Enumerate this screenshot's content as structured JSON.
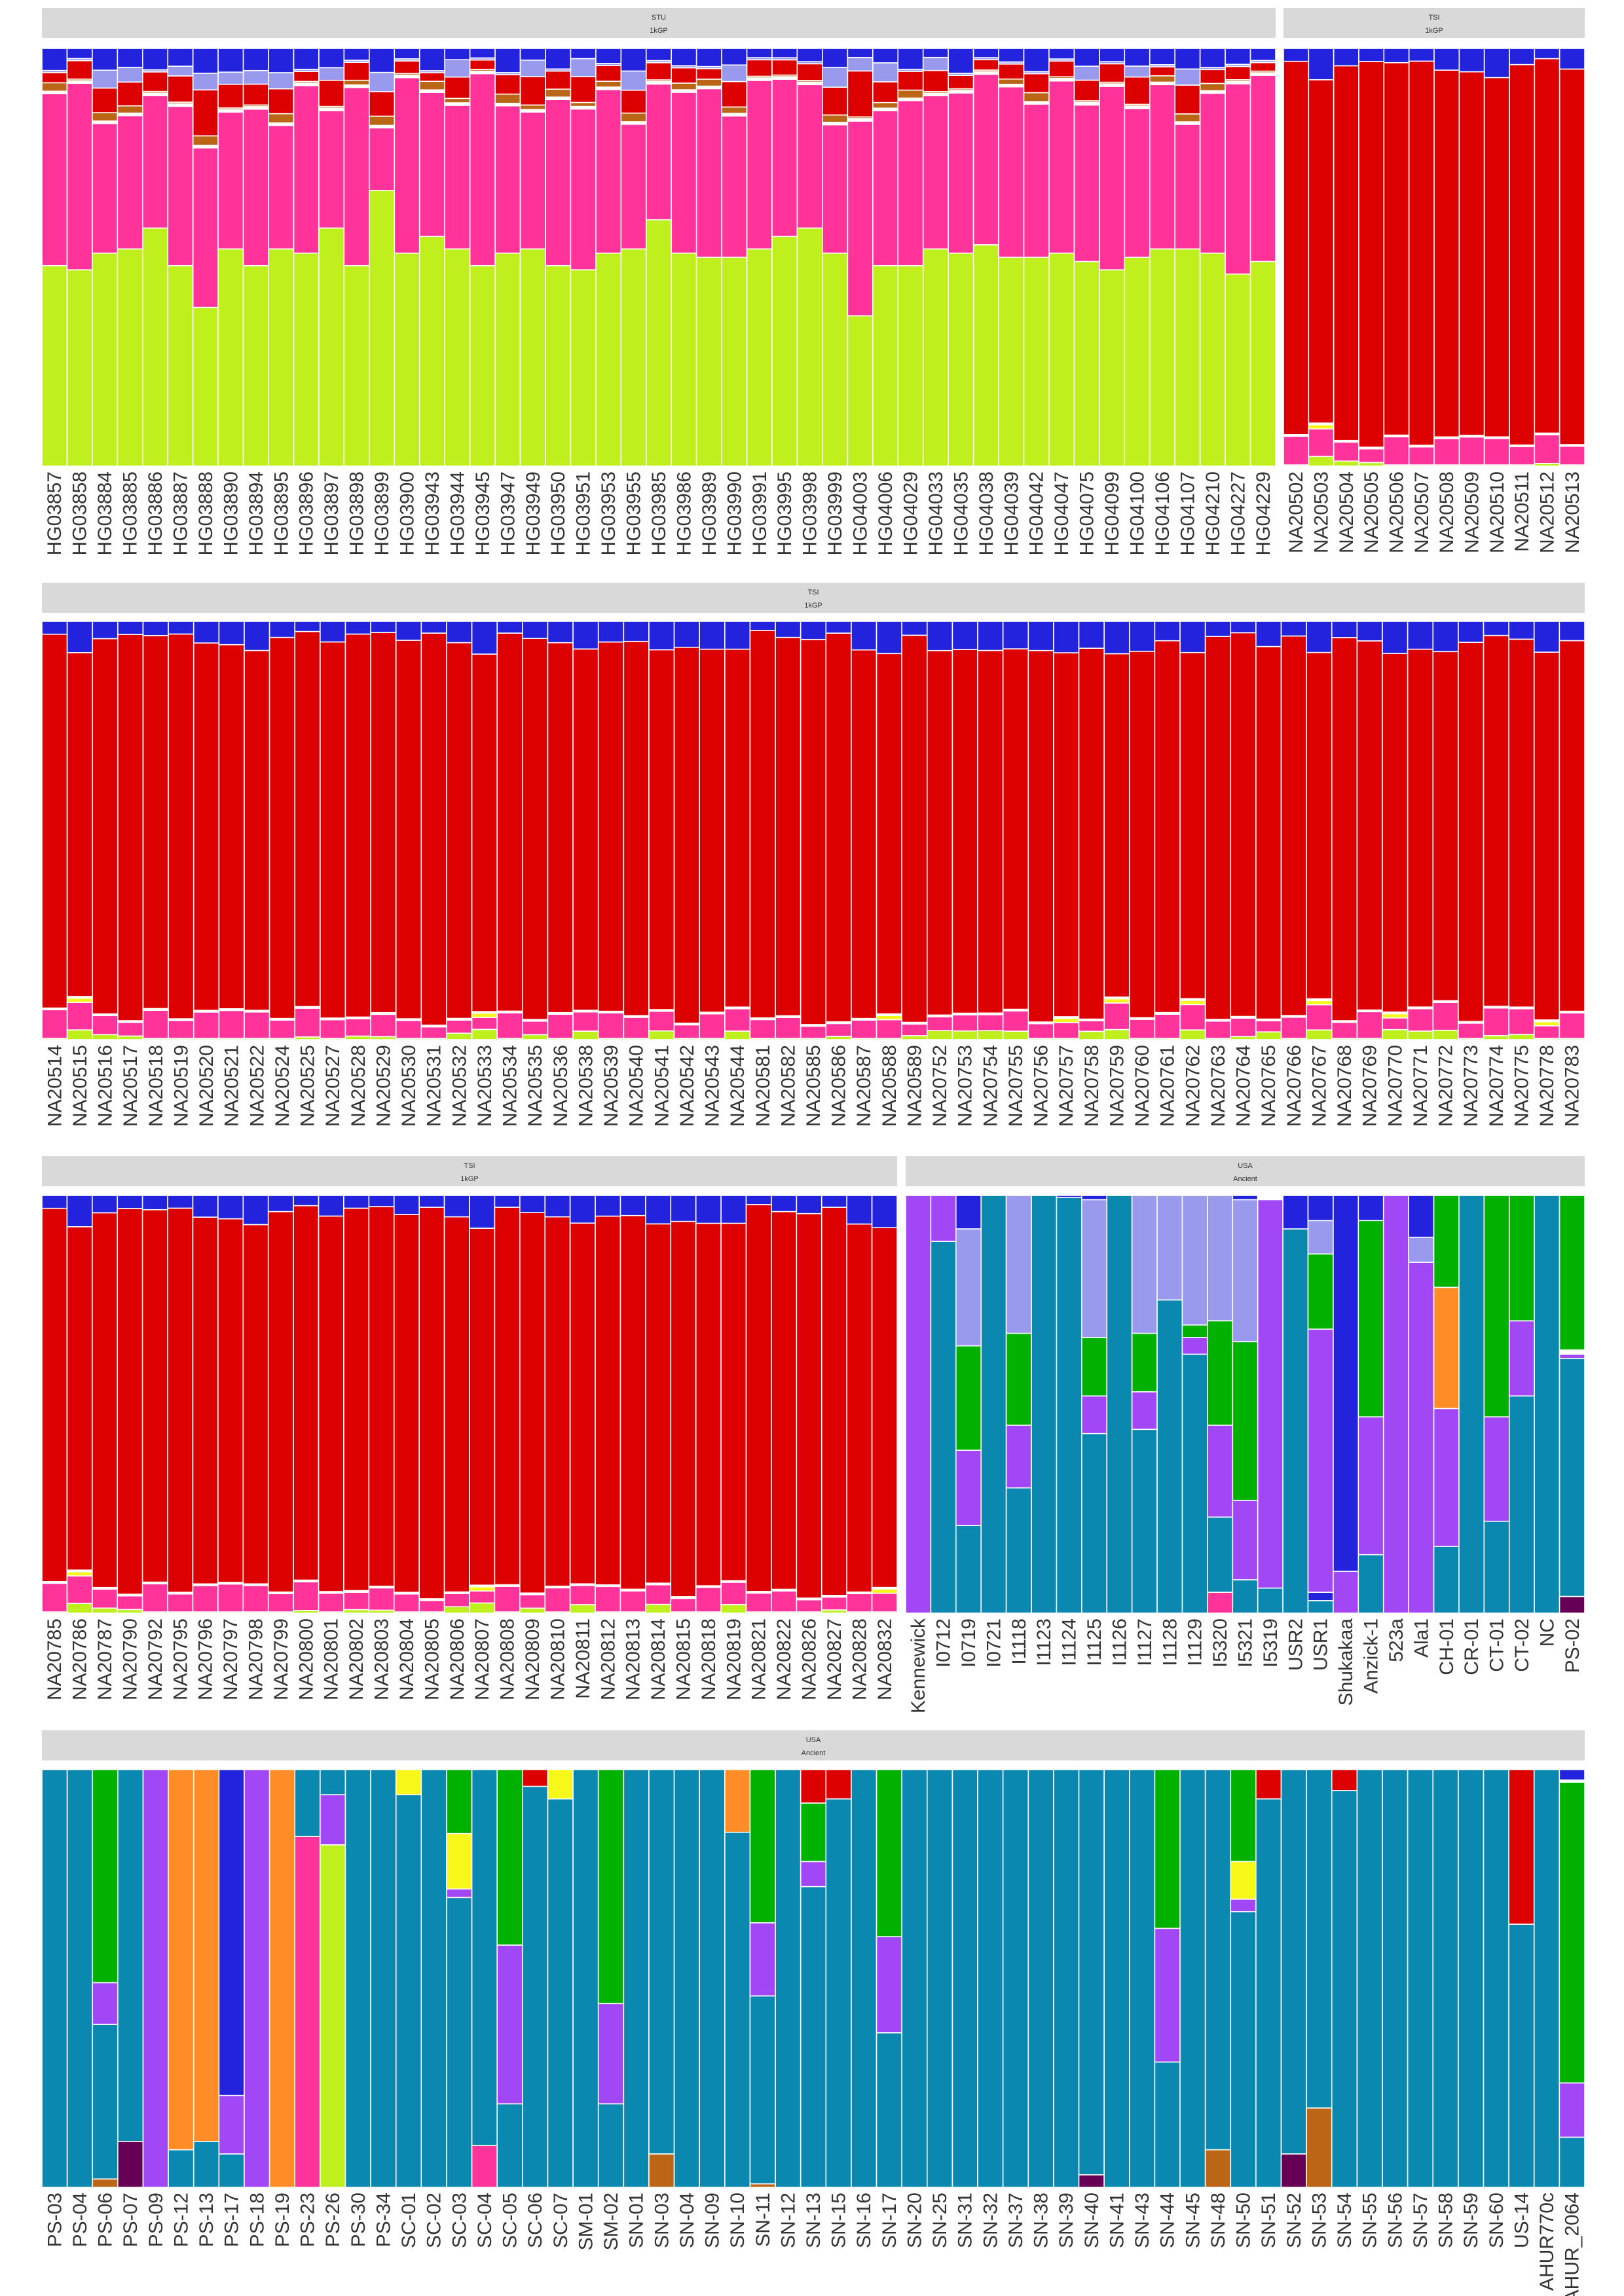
{
  "chart_data": [
    {
      "type": "bar",
      "stacked": true,
      "facets": [
        {
          "group": "STU",
          "source": "1kGP",
          "samples": [
            "HG03857",
            "HG03858",
            "HG03884",
            "HG03885",
            "HG03886",
            "HG03887",
            "HG03888",
            "HG03890",
            "HG03894",
            "HG03895",
            "HG03896",
            "HG03897",
            "HG03898",
            "HG03899",
            "HG03900",
            "HG03943",
            "HG03944",
            "HG03945",
            "HG03947",
            "HG03949",
            "HG03950",
            "HG03951",
            "HG03953",
            "HG03955",
            "HG03985",
            "HG03986",
            "HG03989",
            "HG03990",
            "HG03991",
            "HG03995",
            "HG03998",
            "HG03999",
            "HG04003",
            "HG04006",
            "HG04029",
            "HG04033",
            "HG04035",
            "HG04038",
            "HG04039",
            "HG04042",
            "HG04047",
            "HG04075",
            "HG04099",
            "HG04100",
            "HG04106",
            "HG04107",
            "HG04210",
            "HG04227",
            "HG04229"
          ],
          "lime": [
            0.48,
            0.47,
            0.51,
            0.52,
            0.57,
            0.48,
            0.38,
            0.52,
            0.48,
            0.52,
            0.51,
            0.57,
            0.48,
            0.66,
            0.51,
            0.55,
            0.52,
            0.48,
            0.51,
            0.52,
            0.48,
            0.47,
            0.51,
            0.52,
            0.59,
            0.51,
            0.5,
            0.5,
            0.52,
            0.55,
            0.57,
            0.51,
            0.36,
            0.48,
            0.48,
            0.52,
            0.51,
            0.53,
            0.5,
            0.5,
            0.51,
            0.49,
            0.47,
            0.5,
            0.52,
            0.52,
            0.51,
            0.46,
            0.49
          ]
        },
        {
          "group": "TSI",
          "source": "1kGP",
          "samples": [
            "NA20502",
            "NA20503",
            "NA20504",
            "NA20505",
            "NA20506",
            "NA20507",
            "NA20508",
            "NA20509",
            "NA20510",
            "NA20511",
            "NA20512",
            "NA20513"
          ],
          "lime": []
        }
      ]
    },
    {
      "type": "bar",
      "stacked": true,
      "facets": [
        {
          "group": "TSI",
          "source": "1kGP",
          "samples": [
            "NA20514",
            "NA20515",
            "NA20516",
            "NA20517",
            "NA20518",
            "NA20519",
            "NA20520",
            "NA20521",
            "NA20522",
            "NA20524",
            "NA20525",
            "NA20527",
            "NA20528",
            "NA20529",
            "NA20530",
            "NA20531",
            "NA20532",
            "NA20533",
            "NA20534",
            "NA20535",
            "NA20536",
            "NA20538",
            "NA20539",
            "NA20540",
            "NA20541",
            "NA20542",
            "NA20543",
            "NA20544",
            "NA20581",
            "NA20582",
            "NA20585",
            "NA20586",
            "NA20587",
            "NA20588",
            "NA20589",
            "NA20752",
            "NA20753",
            "NA20754",
            "NA20755",
            "NA20756",
            "NA20757",
            "NA20758",
            "NA20759",
            "NA20760",
            "NA20761",
            "NA20762",
            "NA20763",
            "NA20764",
            "NA20765",
            "NA20766",
            "NA20767",
            "NA20768",
            "NA20769",
            "NA20770",
            "NA20771",
            "NA20772",
            "NA20773",
            "NA20774",
            "NA20775",
            "NA20778",
            "NA20783"
          ],
          "lime": []
        }
      ]
    },
    {
      "type": "bar",
      "stacked": true,
      "facets": [
        {
          "group": "TSI",
          "source": "1kGP",
          "samples": [
            "NA20785",
            "NA20786",
            "NA20787",
            "NA20790",
            "NA20792",
            "NA20795",
            "NA20796",
            "NA20797",
            "NA20798",
            "NA20799",
            "NA20800",
            "NA20801",
            "NA20802",
            "NA20803",
            "NA20804",
            "NA20805",
            "NA20806",
            "NA20807",
            "NA20808",
            "NA20809",
            "NA20810",
            "NA20811",
            "NA20812",
            "NA20813",
            "NA20814",
            "NA20815",
            "NA20818",
            "NA20819",
            "NA20821",
            "NA20822",
            "NA20826",
            "NA20827",
            "NA20828",
            "NA20832"
          ],
          "lime": []
        },
        {
          "group": "USA",
          "source": "Ancient",
          "samples": [
            "Kennewick",
            "I0712",
            "I0719",
            "I0721",
            "I1118",
            "I1123",
            "I1124",
            "I1125",
            "I1126",
            "I1127",
            "I1128",
            "I1129",
            "I5320",
            "I5321",
            "I5319",
            "USR2",
            "USR1",
            "Shukakaa",
            "Anzick-1",
            "523a",
            "Ala1",
            "CH-01",
            "CR-01",
            "CT-01",
            "CT-02",
            "NC",
            "PS-02"
          ],
          "lime": []
        }
      ]
    },
    {
      "type": "bar",
      "stacked": true,
      "facets": [
        {
          "group": "USA",
          "source": "Ancient",
          "samples": [
            "PS-03",
            "PS-04",
            "PS-06",
            "PS-07",
            "PS-09",
            "PS-12",
            "PS-13",
            "PS-17",
            "PS-18",
            "PS-19",
            "PS-23",
            "PS-26",
            "PS-30",
            "PS-34",
            "SC-01",
            "SC-02",
            "SC-03",
            "SC-04",
            "SC-05",
            "SC-06",
            "SC-07",
            "SM-01",
            "SM-02",
            "SN-01",
            "SN-03",
            "SN-04",
            "SN-09",
            "SN-10",
            "SN-11",
            "SN-12",
            "SN-13",
            "SN-15",
            "SN-16",
            "SN-17",
            "SN-20",
            "SN-25",
            "SN-31",
            "SN-32",
            "SN-37",
            "SN-38",
            "SN-39",
            "SN-40",
            "SN-41",
            "SN-43",
            "SN-44",
            "SN-45",
            "SN-48",
            "SN-50",
            "SN-51",
            "SN-52",
            "SN-53",
            "SN-54",
            "SN-55",
            "SN-56",
            "SN-57",
            "SN-58",
            "SN-59",
            "SN-60",
            "US-14",
            "AHUR770c",
            "AHUR_2064"
          ],
          "lime": []
        }
      ]
    }
  ],
  "colors": {
    "lime": "#c0ef1e",
    "pink": "#ff3399",
    "red": "#dd0000",
    "blue": "#2323dd",
    "lavender": "#9999ee",
    "teal": "#0a88b0",
    "green": "#00b100",
    "purple": "#a147f5",
    "orange": "#ff8c26",
    "yellow": "#f7f71a",
    "brown": "#bb6616",
    "darkpurple": "#660055",
    "strip": "#d9d9d9"
  }
}
